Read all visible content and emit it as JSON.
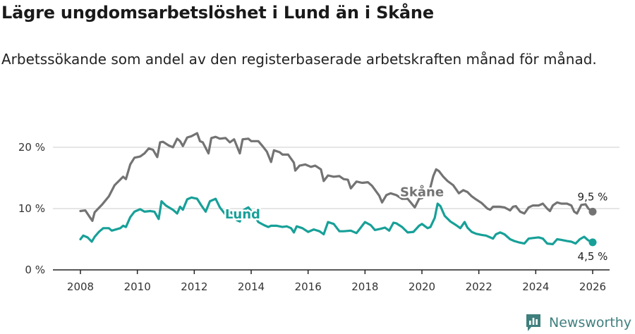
{
  "chart_data": {
    "type": "line",
    "title": "Lägre ungdomsarbetslöshet i Lund än i Skåne",
    "subtitle": "Arbetssökande som andel av den registerbaserade arbetskraften månad för månad.",
    "xlabel": "",
    "ylabel": "",
    "xlim": [
      2007.5,
      2026.6
    ],
    "ylim": [
      0,
      20
    ],
    "x_ticks": [
      2008,
      2010,
      2012,
      2014,
      2016,
      2018,
      2020,
      2022,
      2024,
      2026
    ],
    "x_tick_labels": [
      "2008",
      "2010",
      "2012",
      "2014",
      "2016",
      "2018",
      "2020",
      "2022",
      "2024",
      "2026"
    ],
    "y_ticks": [
      0,
      10,
      20
    ],
    "y_tick_labels": [
      "0 %",
      "10 %",
      "20 %"
    ],
    "grid": true,
    "series": [
      {
        "name": "Skåne",
        "color": "#737373",
        "label_x": 2020,
        "label_y": 12,
        "end_label": "9,5 %",
        "points": [
          [
            2008.0,
            9.6
          ],
          [
            2008.17,
            9.7
          ],
          [
            2008.33,
            8.6
          ],
          [
            2008.42,
            8.0
          ],
          [
            2008.5,
            9.4
          ],
          [
            2008.75,
            10.6
          ],
          [
            2009.0,
            12.0
          ],
          [
            2009.2,
            13.8
          ],
          [
            2009.5,
            15.2
          ],
          [
            2009.6,
            14.8
          ],
          [
            2009.75,
            17.2
          ],
          [
            2009.9,
            18.3
          ],
          [
            2010.1,
            18.5
          ],
          [
            2010.25,
            19.0
          ],
          [
            2010.4,
            19.8
          ],
          [
            2010.55,
            19.6
          ],
          [
            2010.7,
            18.4
          ],
          [
            2010.8,
            20.8
          ],
          [
            2010.9,
            20.9
          ],
          [
            2011.1,
            20.3
          ],
          [
            2011.25,
            20.0
          ],
          [
            2011.4,
            21.4
          ],
          [
            2011.5,
            21.0
          ],
          [
            2011.6,
            20.2
          ],
          [
            2011.75,
            21.6
          ],
          [
            2011.9,
            21.8
          ],
          [
            2012.1,
            22.3
          ],
          [
            2012.2,
            21.0
          ],
          [
            2012.3,
            20.8
          ],
          [
            2012.5,
            19.0
          ],
          [
            2012.6,
            21.5
          ],
          [
            2012.75,
            21.7
          ],
          [
            2012.9,
            21.4
          ],
          [
            2013.1,
            21.5
          ],
          [
            2013.25,
            20.8
          ],
          [
            2013.4,
            21.3
          ],
          [
            2013.6,
            19.0
          ],
          [
            2013.7,
            21.3
          ],
          [
            2013.9,
            21.4
          ],
          [
            2014.0,
            21.0
          ],
          [
            2014.25,
            21.0
          ],
          [
            2014.4,
            20.2
          ],
          [
            2014.55,
            19.3
          ],
          [
            2014.7,
            17.6
          ],
          [
            2014.8,
            19.5
          ],
          [
            2015.0,
            19.2
          ],
          [
            2015.1,
            18.8
          ],
          [
            2015.3,
            18.8
          ],
          [
            2015.5,
            17.5
          ],
          [
            2015.55,
            16.2
          ],
          [
            2015.7,
            17.0
          ],
          [
            2015.9,
            17.2
          ],
          [
            2016.1,
            16.8
          ],
          [
            2016.25,
            17.0
          ],
          [
            2016.45,
            16.4
          ],
          [
            2016.55,
            14.5
          ],
          [
            2016.7,
            15.4
          ],
          [
            2016.9,
            15.2
          ],
          [
            2017.1,
            15.3
          ],
          [
            2017.25,
            14.8
          ],
          [
            2017.4,
            14.7
          ],
          [
            2017.5,
            13.3
          ],
          [
            2017.7,
            14.4
          ],
          [
            2017.9,
            14.2
          ],
          [
            2018.1,
            14.3
          ],
          [
            2018.25,
            13.7
          ],
          [
            2018.5,
            12.1
          ],
          [
            2018.6,
            11.0
          ],
          [
            2018.75,
            12.2
          ],
          [
            2018.9,
            12.5
          ],
          [
            2019.1,
            12.2
          ],
          [
            2019.3,
            11.6
          ],
          [
            2019.5,
            11.6
          ],
          [
            2019.75,
            10.2
          ],
          [
            2019.9,
            11.6
          ],
          [
            2020.0,
            11.7
          ],
          [
            2020.15,
            12.4
          ],
          [
            2020.3,
            13.5
          ],
          [
            2020.4,
            15.3
          ],
          [
            2020.5,
            16.4
          ],
          [
            2020.6,
            16.1
          ],
          [
            2020.75,
            15.2
          ],
          [
            2020.9,
            14.5
          ],
          [
            2021.1,
            13.8
          ],
          [
            2021.3,
            12.5
          ],
          [
            2021.45,
            13.0
          ],
          [
            2021.6,
            12.7
          ],
          [
            2021.75,
            12.0
          ],
          [
            2021.9,
            11.5
          ],
          [
            2022.1,
            10.9
          ],
          [
            2022.3,
            10.0
          ],
          [
            2022.4,
            9.8
          ],
          [
            2022.5,
            10.3
          ],
          [
            2022.75,
            10.3
          ],
          [
            2022.9,
            10.2
          ],
          [
            2023.1,
            9.7
          ],
          [
            2023.2,
            10.3
          ],
          [
            2023.3,
            10.4
          ],
          [
            2023.45,
            9.5
          ],
          [
            2023.6,
            9.2
          ],
          [
            2023.75,
            10.2
          ],
          [
            2023.9,
            10.5
          ],
          [
            2024.1,
            10.5
          ],
          [
            2024.25,
            10.8
          ],
          [
            2024.4,
            10.0
          ],
          [
            2024.5,
            9.6
          ],
          [
            2024.6,
            10.5
          ],
          [
            2024.75,
            11.0
          ],
          [
            2024.9,
            10.8
          ],
          [
            2025.1,
            10.8
          ],
          [
            2025.25,
            10.5
          ],
          [
            2025.35,
            9.5
          ],
          [
            2025.45,
            9.2
          ],
          [
            2025.6,
            10.6
          ],
          [
            2025.75,
            10.7
          ],
          [
            2025.85,
            10.0
          ],
          [
            2026.0,
            9.5
          ]
        ]
      },
      {
        "name": "Lund",
        "color": "#17a098",
        "label_x": 2013.7,
        "label_y": 8.4,
        "end_label": "4,5 %",
        "points": [
          [
            2008.0,
            5.0
          ],
          [
            2008.1,
            5.6
          ],
          [
            2008.25,
            5.3
          ],
          [
            2008.4,
            4.6
          ],
          [
            2008.5,
            5.4
          ],
          [
            2008.65,
            6.2
          ],
          [
            2008.8,
            6.8
          ],
          [
            2009.0,
            6.8
          ],
          [
            2009.1,
            6.4
          ],
          [
            2009.25,
            6.6
          ],
          [
            2009.4,
            6.8
          ],
          [
            2009.5,
            7.2
          ],
          [
            2009.6,
            7.0
          ],
          [
            2009.75,
            8.6
          ],
          [
            2009.9,
            9.5
          ],
          [
            2010.1,
            9.9
          ],
          [
            2010.25,
            9.5
          ],
          [
            2010.45,
            9.6
          ],
          [
            2010.6,
            9.5
          ],
          [
            2010.75,
            8.3
          ],
          [
            2010.85,
            11.2
          ],
          [
            2011.0,
            10.5
          ],
          [
            2011.25,
            9.8
          ],
          [
            2011.4,
            9.2
          ],
          [
            2011.5,
            10.3
          ],
          [
            2011.6,
            9.8
          ],
          [
            2011.75,
            11.5
          ],
          [
            2011.9,
            11.8
          ],
          [
            2012.1,
            11.6
          ],
          [
            2012.25,
            10.5
          ],
          [
            2012.4,
            9.5
          ],
          [
            2012.55,
            11.2
          ],
          [
            2012.75,
            11.6
          ],
          [
            2012.9,
            10.2
          ],
          [
            2013.1,
            9.0
          ],
          [
            2013.3,
            9.4
          ],
          [
            2013.5,
            8.1
          ],
          [
            2013.6,
            7.9
          ],
          [
            2013.75,
            9.8
          ],
          [
            2013.9,
            10.2
          ],
          [
            2014.1,
            9.0
          ],
          [
            2014.25,
            7.8
          ],
          [
            2014.45,
            7.3
          ],
          [
            2014.6,
            7.0
          ],
          [
            2014.7,
            7.2
          ],
          [
            2014.9,
            7.2
          ],
          [
            2015.1,
            7.0
          ],
          [
            2015.25,
            7.1
          ],
          [
            2015.4,
            6.8
          ],
          [
            2015.5,
            6.1
          ],
          [
            2015.6,
            7.1
          ],
          [
            2015.8,
            6.8
          ],
          [
            2016.0,
            6.2
          ],
          [
            2016.2,
            6.6
          ],
          [
            2016.4,
            6.3
          ],
          [
            2016.55,
            5.8
          ],
          [
            2016.7,
            7.8
          ],
          [
            2016.9,
            7.5
          ],
          [
            2017.1,
            6.3
          ],
          [
            2017.25,
            6.3
          ],
          [
            2017.5,
            6.4
          ],
          [
            2017.7,
            6.0
          ],
          [
            2017.85,
            6.9
          ],
          [
            2018.0,
            7.8
          ],
          [
            2018.2,
            7.3
          ],
          [
            2018.35,
            6.5
          ],
          [
            2018.55,
            6.7
          ],
          [
            2018.7,
            6.9
          ],
          [
            2018.85,
            6.4
          ],
          [
            2019.0,
            7.7
          ],
          [
            2019.1,
            7.6
          ],
          [
            2019.3,
            7.0
          ],
          [
            2019.5,
            6.1
          ],
          [
            2019.7,
            6.2
          ],
          [
            2019.9,
            7.2
          ],
          [
            2020.0,
            7.5
          ],
          [
            2020.2,
            6.8
          ],
          [
            2020.3,
            7.0
          ],
          [
            2020.45,
            8.5
          ],
          [
            2020.55,
            10.8
          ],
          [
            2020.65,
            10.4
          ],
          [
            2020.8,
            8.8
          ],
          [
            2021.0,
            7.9
          ],
          [
            2021.2,
            7.3
          ],
          [
            2021.35,
            6.8
          ],
          [
            2021.5,
            7.8
          ],
          [
            2021.6,
            6.9
          ],
          [
            2021.75,
            6.2
          ],
          [
            2021.9,
            5.9
          ],
          [
            2022.1,
            5.7
          ],
          [
            2022.25,
            5.6
          ],
          [
            2022.5,
            5.1
          ],
          [
            2022.6,
            5.8
          ],
          [
            2022.75,
            6.1
          ],
          [
            2022.9,
            5.8
          ],
          [
            2023.1,
            5.0
          ],
          [
            2023.25,
            4.7
          ],
          [
            2023.4,
            4.5
          ],
          [
            2023.6,
            4.3
          ],
          [
            2023.75,
            5.1
          ],
          [
            2023.9,
            5.2
          ],
          [
            2024.1,
            5.3
          ],
          [
            2024.25,
            5.1
          ],
          [
            2024.4,
            4.3
          ],
          [
            2024.6,
            4.2
          ],
          [
            2024.75,
            5.0
          ],
          [
            2024.9,
            4.9
          ],
          [
            2025.1,
            4.7
          ],
          [
            2025.25,
            4.6
          ],
          [
            2025.4,
            4.3
          ],
          [
            2025.55,
            5.0
          ],
          [
            2025.7,
            5.4
          ],
          [
            2025.85,
            4.8
          ],
          [
            2026.0,
            4.5
          ]
        ]
      }
    ]
  },
  "brand": {
    "name": "Newsworthy",
    "icon": "newsworthy-logo-icon",
    "color": "#3f7f7d"
  }
}
